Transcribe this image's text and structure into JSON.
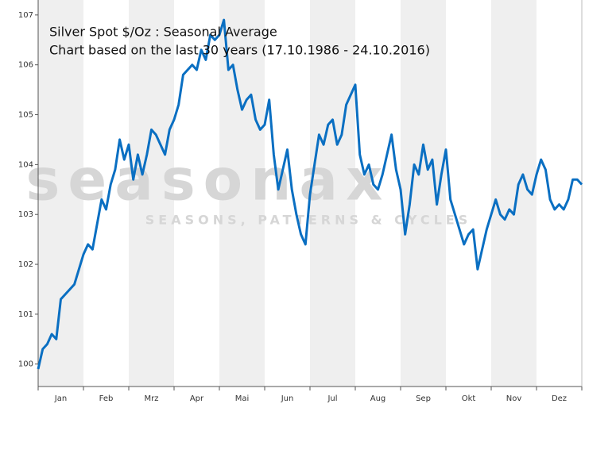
{
  "chart_data": {
    "type": "line",
    "title": "Silver Spot  $/Oz : Seasonal Average",
    "subtitle": "Chart based on the last 30 years (17.10.1986 - 24.10.2016)",
    "watermark": "seasonax",
    "watermark_tagline": "SEASONS, PATTERNS & CYCLES",
    "categories": [
      "Jan",
      "Feb",
      "Mrz",
      "Apr",
      "Mai",
      "Jun",
      "Jul",
      "Aug",
      "Sep",
      "Okt",
      "Nov",
      "Dez"
    ],
    "xlim": [
      0,
      12
    ],
    "ylim": [
      99.55,
      107.3
    ],
    "yticks": [
      100,
      101,
      102,
      103,
      104,
      105,
      106,
      107
    ],
    "band_color": "#efefef",
    "series": [
      {
        "color": "#0a6fc2",
        "x": [
          0,
          0.1,
          0.2,
          0.3,
          0.4,
          0.5,
          0.6,
          0.7,
          0.8,
          0.9,
          1,
          1.1,
          1.2,
          1.3,
          1.4,
          1.5,
          1.6,
          1.7,
          1.8,
          1.9,
          2,
          2.1,
          2.2,
          2.3,
          2.4,
          2.5,
          2.6,
          2.7,
          2.8,
          2.9,
          3,
          3.1,
          3.2,
          3.3,
          3.4,
          3.5,
          3.6,
          3.7,
          3.8,
          3.9,
          4,
          4.1,
          4.2,
          4.3,
          4.4,
          4.5,
          4.6,
          4.7,
          4.8,
          4.9,
          5,
          5.1,
          5.2,
          5.3,
          5.4,
          5.5,
          5.6,
          5.7,
          5.8,
          5.9,
          6,
          6.1,
          6.2,
          6.3,
          6.4,
          6.5,
          6.6,
          6.7,
          6.8,
          6.9,
          7,
          7.1,
          7.2,
          7.3,
          7.4,
          7.5,
          7.6,
          7.7,
          7.8,
          7.9,
          8,
          8.1,
          8.2,
          8.3,
          8.4,
          8.5,
          8.6,
          8.7,
          8.8,
          8.9,
          9,
          9.1,
          9.2,
          9.3,
          9.4,
          9.5,
          9.6,
          9.7,
          9.8,
          9.9,
          10,
          10.1,
          10.2,
          10.3,
          10.4,
          10.5,
          10.6,
          10.7,
          10.8,
          10.9,
          11,
          11.1,
          11.2,
          11.3,
          11.4,
          11.5,
          11.6,
          11.7,
          11.8,
          11.9,
          12
        ],
        "values": [
          99.9,
          100.3,
          100.4,
          100.6,
          100.5,
          101.3,
          101.4,
          101.5,
          101.6,
          101.9,
          102.2,
          102.4,
          102.3,
          102.8,
          103.3,
          103.1,
          103.6,
          103.9,
          104.5,
          104.1,
          104.4,
          103.7,
          104.2,
          103.8,
          104.2,
          104.7,
          104.6,
          104.4,
          104.2,
          104.7,
          104.9,
          105.2,
          105.8,
          105.9,
          106.0,
          105.9,
          106.3,
          106.1,
          106.6,
          106.5,
          106.6,
          106.9,
          105.9,
          106.0,
          105.5,
          105.1,
          105.3,
          105.4,
          104.9,
          104.7,
          104.8,
          105.3,
          104.2,
          103.5,
          103.9,
          104.3,
          103.5,
          103.0,
          102.6,
          102.4,
          103.4,
          104.0,
          104.6,
          104.4,
          104.8,
          104.9,
          104.4,
          104.6,
          105.2,
          105.4,
          105.6,
          104.2,
          103.8,
          104.0,
          103.6,
          103.5,
          103.8,
          104.2,
          104.6,
          103.9,
          103.5,
          102.6,
          103.2,
          104.0,
          103.8,
          104.4,
          103.9,
          104.1,
          103.2,
          103.8,
          104.3,
          103.3,
          103.0,
          102.7,
          102.4,
          102.6,
          102.7,
          101.9,
          102.3,
          102.7,
          103.0,
          103.3,
          103.0,
          102.9,
          103.1,
          103.0,
          103.6,
          103.8,
          103.5,
          103.4,
          103.8,
          104.1,
          103.9,
          103.3,
          103.1,
          103.2,
          103.1,
          103.3,
          103.7,
          103.7,
          103.6
        ]
      }
    ]
  }
}
